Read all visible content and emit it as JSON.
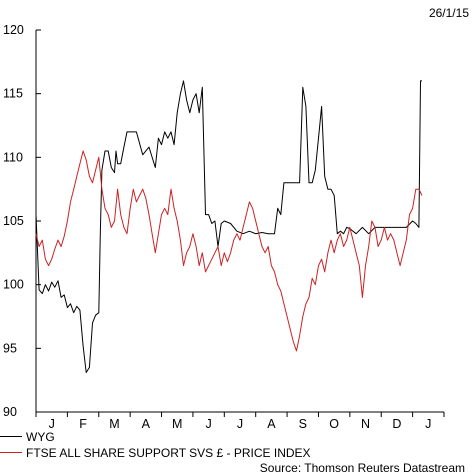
{
  "date_label": "26/1/15",
  "source": "Source: Thomson Reuters Datastream",
  "chart_data": {
    "type": "line",
    "title": "",
    "xlabel": "",
    "ylabel": "",
    "ylim": [
      90,
      120
    ],
    "yticks": [
      90,
      95,
      100,
      105,
      110,
      115,
      120
    ],
    "x_months": [
      "J",
      "F",
      "M",
      "A",
      "M",
      "J",
      "J",
      "A",
      "S",
      "O",
      "N",
      "D",
      "J"
    ],
    "grid": false,
    "legend_position": "bottom-left",
    "series": [
      {
        "name": "WYG",
        "color": "#000000",
        "x": [
          0,
          0.1,
          0.2,
          0.3,
          0.4,
          0.5,
          0.6,
          0.7,
          0.8,
          0.9,
          1.0,
          1.1,
          1.2,
          1.3,
          1.4,
          1.5,
          1.6,
          1.7,
          1.8,
          1.9,
          2.0,
          2.05,
          2.1,
          2.2,
          2.3,
          2.4,
          2.5,
          2.55,
          2.6,
          2.7,
          2.8,
          2.9,
          3.0,
          3.2,
          3.4,
          3.6,
          3.8,
          3.9,
          4.0,
          4.1,
          4.2,
          4.3,
          4.4,
          4.5,
          4.6,
          4.7,
          4.8,
          4.9,
          5.0,
          5.1,
          5.2,
          5.3,
          5.4,
          5.5,
          5.6,
          5.7,
          5.8,
          5.9,
          6.0,
          6.2,
          6.4,
          6.6,
          6.8,
          7.0,
          7.2,
          7.4,
          7.6,
          7.7,
          7.8,
          7.9,
          8.0,
          8.1,
          8.2,
          8.3,
          8.4,
          8.5,
          8.6,
          8.7,
          8.8,
          8.9,
          9.0,
          9.1,
          9.2,
          9.3,
          9.4,
          9.5,
          9.6,
          9.7,
          9.8,
          9.9,
          10.0,
          10.2,
          10.4,
          10.6,
          10.8,
          11.0,
          11.2,
          11.4,
          11.6,
          11.8,
          12.0,
          12.1,
          12.2,
          12.25,
          12.3
        ],
        "values": [
          105.5,
          99.6,
          99.3,
          100.0,
          99.5,
          100.2,
          99.8,
          100.3,
          99.0,
          99.2,
          98.2,
          98.5,
          97.8,
          98.3,
          98.0,
          95.2,
          93.1,
          93.5,
          97.0,
          97.6,
          97.8,
          104.0,
          109.0,
          110.5,
          110.5,
          109.2,
          108.8,
          110.5,
          109.5,
          109.5,
          110.8,
          112.0,
          112.0,
          112.0,
          110.2,
          110.8,
          109.2,
          111.5,
          111.0,
          112.0,
          111.5,
          112.0,
          111.0,
          113.5,
          115.0,
          116.0,
          114.5,
          113.5,
          114.5,
          115.0,
          113.5,
          115.5,
          105.5,
          105.5,
          104.8,
          105.0,
          103.0,
          104.8,
          105.0,
          104.8,
          104.2,
          104.0,
          104.2,
          104.0,
          104.1,
          104.0,
          104.0,
          106.0,
          105.5,
          108.0,
          108.0,
          108.0,
          108.0,
          108.0,
          108.0,
          115.5,
          114.0,
          108.0,
          108.0,
          109.0,
          111.5,
          114.0,
          108.5,
          107.5,
          107.5,
          107.0,
          104.0,
          104.2,
          104.0,
          104.5,
          104.4,
          104.0,
          104.5,
          104.0,
          104.5,
          104.5,
          104.5,
          104.5,
          104.5,
          104.5,
          105.0,
          104.8,
          104.5,
          116.0,
          116.0
        ]
      },
      {
        "name": "FTSE ALL SHARE SUPPORT SVS £ - PRICE INDEX",
        "color": "#cc2222",
        "x": [
          0,
          0.1,
          0.2,
          0.3,
          0.4,
          0.5,
          0.6,
          0.7,
          0.8,
          0.9,
          1.0,
          1.1,
          1.2,
          1.3,
          1.4,
          1.5,
          1.6,
          1.7,
          1.8,
          1.9,
          2.0,
          2.1,
          2.2,
          2.3,
          2.4,
          2.5,
          2.6,
          2.7,
          2.8,
          2.9,
          3.0,
          3.1,
          3.2,
          3.3,
          3.4,
          3.5,
          3.6,
          3.7,
          3.8,
          3.9,
          4.0,
          4.1,
          4.2,
          4.3,
          4.4,
          4.5,
          4.6,
          4.7,
          4.8,
          4.9,
          5.0,
          5.1,
          5.2,
          5.3,
          5.4,
          5.5,
          5.6,
          5.7,
          5.8,
          5.9,
          6.0,
          6.1,
          6.2,
          6.3,
          6.4,
          6.5,
          6.6,
          6.7,
          6.8,
          6.9,
          7.0,
          7.1,
          7.2,
          7.3,
          7.4,
          7.5,
          7.6,
          7.7,
          7.8,
          7.9,
          8.0,
          8.1,
          8.2,
          8.3,
          8.4,
          8.5,
          8.6,
          8.7,
          8.8,
          8.9,
          9.0,
          9.1,
          9.2,
          9.3,
          9.4,
          9.5,
          9.6,
          9.7,
          9.8,
          9.9,
          10.0,
          10.1,
          10.2,
          10.3,
          10.4,
          10.5,
          10.6,
          10.7,
          10.8,
          10.9,
          11.0,
          11.1,
          11.2,
          11.3,
          11.4,
          11.5,
          11.6,
          11.7,
          11.8,
          11.9,
          12.0,
          12.1,
          12.2,
          12.3
        ],
        "values": [
          104.0,
          103.0,
          103.5,
          102.0,
          101.5,
          102.0,
          102.8,
          103.5,
          103.0,
          103.8,
          105.0,
          106.5,
          107.5,
          108.5,
          109.5,
          110.5,
          109.8,
          108.5,
          108.0,
          109.0,
          110.0,
          107.5,
          106.0,
          105.5,
          104.5,
          105.0,
          107.5,
          105.5,
          104.5,
          104.0,
          106.0,
          107.5,
          106.5,
          107.0,
          107.5,
          106.8,
          105.5,
          104.0,
          102.5,
          104.0,
          105.5,
          106.0,
          105.5,
          107.5,
          106.0,
          105.0,
          103.5,
          101.5,
          102.5,
          103.0,
          104.0,
          103.0,
          101.5,
          102.5,
          101.0,
          101.5,
          102.0,
          102.5,
          103.0,
          101.5,
          102.5,
          101.8,
          102.5,
          103.5,
          104.0,
          103.5,
          104.5,
          105.5,
          106.5,
          106.0,
          105.0,
          104.0,
          103.0,
          102.5,
          103.0,
          101.5,
          101.0,
          100.0,
          99.5,
          98.5,
          97.5,
          96.5,
          95.5,
          94.8,
          96.0,
          97.5,
          98.5,
          99.0,
          100.5,
          100.0,
          101.5,
          102.0,
          101.0,
          102.5,
          103.5,
          102.5,
          103.5,
          104.0,
          103.0,
          103.5,
          104.5,
          103.5,
          102.5,
          101.5,
          99.0,
          101.5,
          103.0,
          105.0,
          104.5,
          103.0,
          103.5,
          104.5,
          103.5,
          104.0,
          103.5,
          102.5,
          101.5,
          102.5,
          103.5,
          105.5,
          106.0,
          107.5,
          107.5,
          107.0
        ]
      }
    ]
  }
}
